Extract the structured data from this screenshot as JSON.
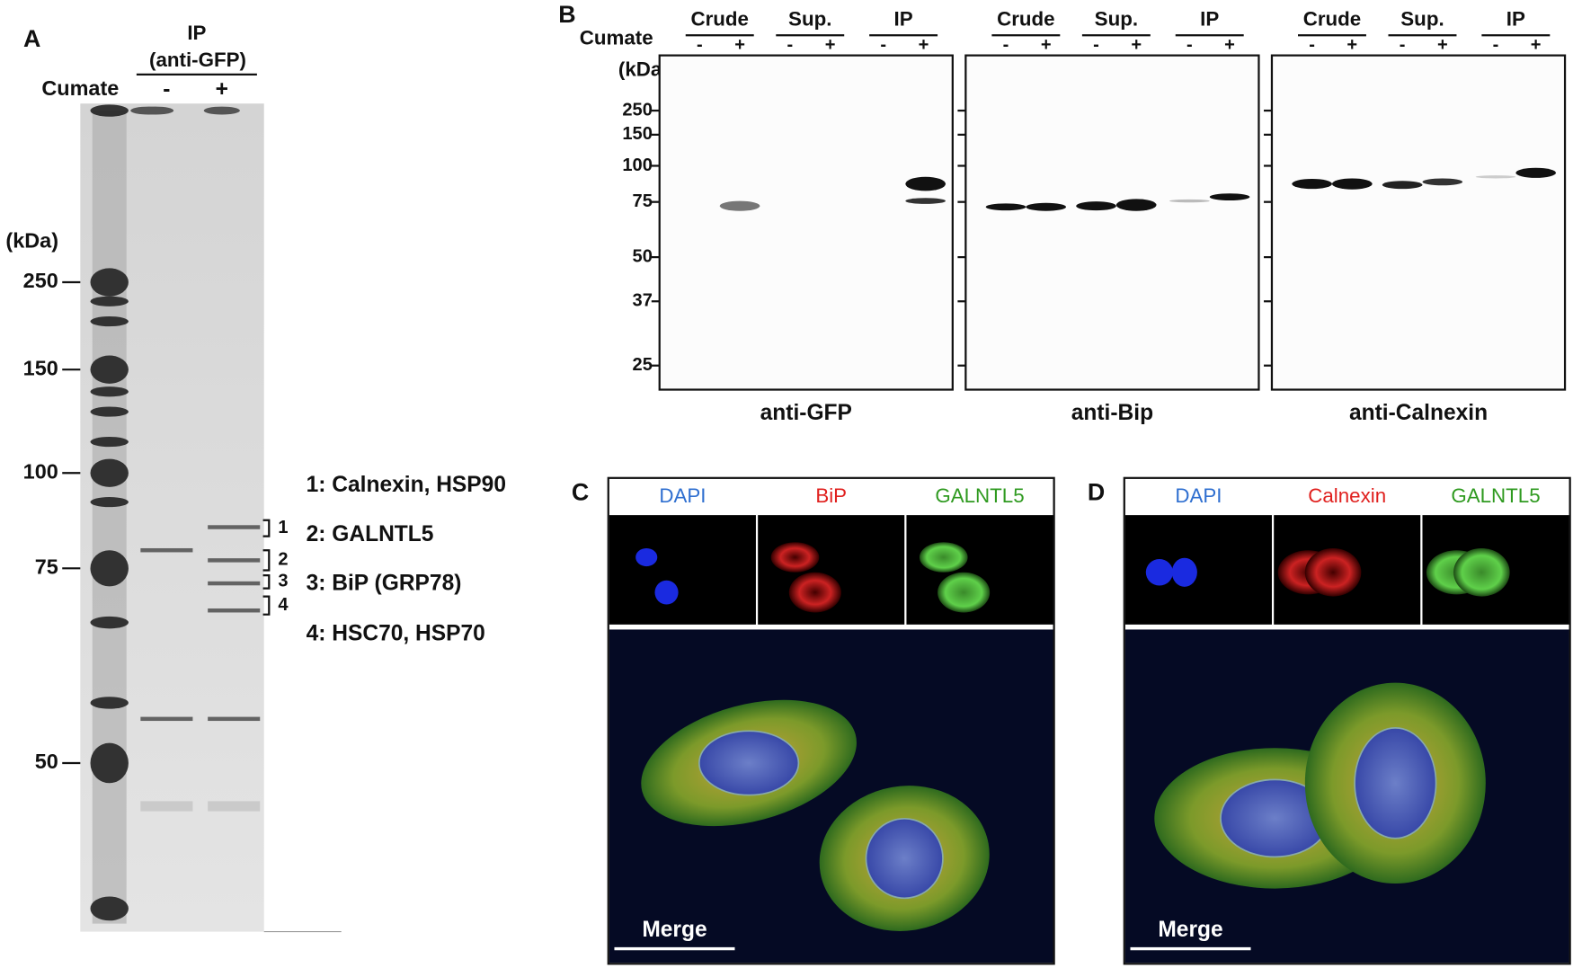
{
  "panel_a": {
    "label": "A",
    "ip": "IP",
    "antibody": "(anti-GFP)",
    "cumate": "Cumate",
    "lanes": [
      "-",
      "+"
    ],
    "unit": "(kDa)",
    "markers": [
      250,
      150,
      100,
      75,
      50
    ],
    "bands": [
      "1",
      "2",
      "3",
      "4"
    ],
    "legend": [
      "1: Calnexin, HSP90",
      "2: GALNTL5",
      "3: BiP (GRP78)",
      "4: HSC70, HSP70"
    ]
  },
  "panel_b": {
    "label": "B",
    "cumate": "Cumate",
    "unit": "(kDa)",
    "markers": [
      250,
      150,
      100,
      75,
      50,
      37,
      25
    ],
    "groups": [
      "Crude",
      "Sup.",
      "IP"
    ],
    "signs": [
      "-",
      "+"
    ],
    "blots": [
      "anti-GFP",
      "anti-Bip",
      "anti-Calnexin"
    ]
  },
  "panel_c": {
    "label": "C",
    "channels": [
      "DAPI",
      "BiP",
      "GALNTL5"
    ],
    "merge": "Merge"
  },
  "panel_d": {
    "label": "D",
    "channels": [
      "DAPI",
      "Calnexin",
      "GALNTL5"
    ],
    "merge": "Merge"
  }
}
